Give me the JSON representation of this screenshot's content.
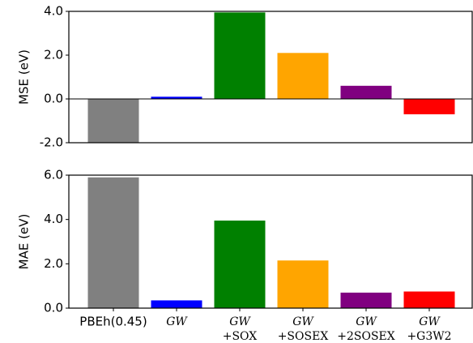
{
  "chart_data": [
    {
      "type": "bar",
      "ylabel": "MSE (eV)",
      "values": [
        -2.0,
        0.1,
        3.95,
        2.1,
        0.6,
        -0.7
      ],
      "colors": [
        "#808080",
        "#0000ff",
        "#008000",
        "#ffa500",
        "#800080",
        "#ff0000"
      ],
      "ylim": [
        -2,
        4
      ],
      "yticks": [
        {
          "value": -2,
          "label": "-2.0"
        },
        {
          "value": 0,
          "label": "0.0"
        },
        {
          "value": 2,
          "label": "2.0"
        },
        {
          "value": 4,
          "label": "4.0"
        }
      ]
    },
    {
      "type": "bar",
      "ylabel": "MAE (eV)",
      "categories": [
        [
          "PBEh(0.45)"
        ],
        [
          "GW"
        ],
        [
          "GW",
          "+SOX"
        ],
        [
          "GW",
          "+SOSEX"
        ],
        [
          "GW",
          "+2SOSEX"
        ],
        [
          "GW",
          "+G3W2"
        ]
      ],
      "values": [
        5.9,
        0.35,
        3.95,
        2.15,
        0.7,
        0.75
      ],
      "colors": [
        "#808080",
        "#0000ff",
        "#008000",
        "#ffa500",
        "#800080",
        "#ff0000"
      ],
      "ylim": [
        0,
        6
      ],
      "yticks": [
        {
          "value": 0,
          "label": "0.0"
        },
        {
          "value": 2,
          "label": "2.0"
        },
        {
          "value": 4,
          "label": "4.0"
        },
        {
          "value": 6,
          "label": "6.0"
        }
      ]
    }
  ]
}
